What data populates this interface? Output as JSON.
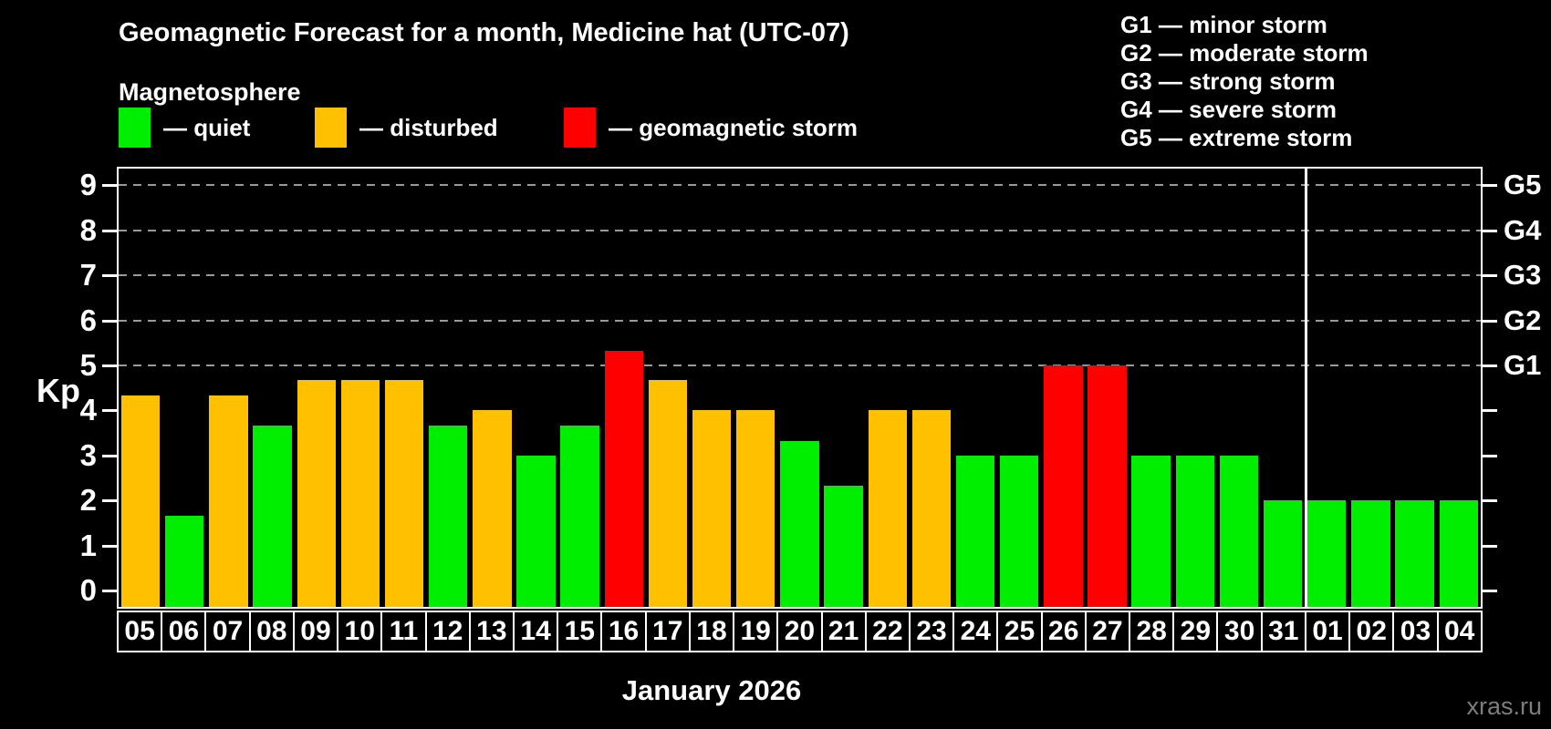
{
  "header": {
    "title": "Geomagnetic Forecast for a month, Medicine hat (UTC-07)",
    "subtitle": "Magnetosphere"
  },
  "legend": {
    "items": [
      {
        "key": "quiet",
        "label": "— quiet"
      },
      {
        "key": "disturbed",
        "label": "— disturbed"
      },
      {
        "key": "storm",
        "label": "— geomagnetic storm"
      }
    ]
  },
  "storm_scale_legend": {
    "lines": [
      "G1 — minor storm",
      "G2 — moderate storm",
      "G3 — strong storm",
      "G4 — severe storm",
      "G5 — extreme storm"
    ]
  },
  "colors": {
    "quiet": "#00ee00",
    "disturbed": "#ffc000",
    "storm": "#ff0000",
    "axis": "#ffffff",
    "gridline": "#999999",
    "background": "#000000",
    "watermark": "#7d7d7d"
  },
  "watermark": "xras.ru",
  "chart_data": {
    "type": "bar",
    "title": "Geomagnetic Forecast for a month, Medicine hat (UTC-07)",
    "subtitle": "Magnetosphere",
    "xlabel": "January 2026",
    "ylabel": "Kp",
    "ylim": [
      0,
      9
    ],
    "yticks": [
      0,
      1,
      2,
      3,
      4,
      5,
      6,
      7,
      8,
      9
    ],
    "gridlines_at": [
      5,
      6,
      7,
      8,
      9
    ],
    "right_axis": [
      {
        "value": 5,
        "label": "G1"
      },
      {
        "value": 6,
        "label": "G2"
      },
      {
        "value": 7,
        "label": "G3"
      },
      {
        "value": 8,
        "label": "G4"
      },
      {
        "value": 9,
        "label": "G5"
      }
    ],
    "legend_position": "top-left",
    "grid": "dashed-horizontal-above-5-only",
    "month_separator_after_index": 26,
    "categories": [
      "05",
      "06",
      "07",
      "08",
      "09",
      "10",
      "11",
      "12",
      "13",
      "14",
      "15",
      "16",
      "17",
      "18",
      "19",
      "20",
      "21",
      "22",
      "23",
      "24",
      "25",
      "26",
      "27",
      "28",
      "29",
      "30",
      "31",
      "01",
      "02",
      "03",
      "04"
    ],
    "values": [
      4.33,
      1.67,
      4.33,
      3.67,
      4.67,
      4.67,
      4.67,
      3.67,
      4.0,
      3.0,
      3.67,
      5.33,
      4.67,
      4.0,
      4.0,
      3.33,
      2.33,
      4.0,
      4.0,
      3.0,
      3.0,
      5.0,
      5.0,
      3.0,
      3.0,
      3.0,
      2.0,
      2.0,
      2.0,
      2.0,
      2.0
    ],
    "statuses": [
      "disturbed",
      "quiet",
      "disturbed",
      "quiet",
      "disturbed",
      "disturbed",
      "disturbed",
      "quiet",
      "disturbed",
      "quiet",
      "quiet",
      "storm",
      "disturbed",
      "disturbed",
      "disturbed",
      "quiet",
      "quiet",
      "disturbed",
      "disturbed",
      "quiet",
      "quiet",
      "storm",
      "storm",
      "quiet",
      "quiet",
      "quiet",
      "quiet",
      "quiet",
      "quiet",
      "quiet",
      "quiet"
    ]
  }
}
